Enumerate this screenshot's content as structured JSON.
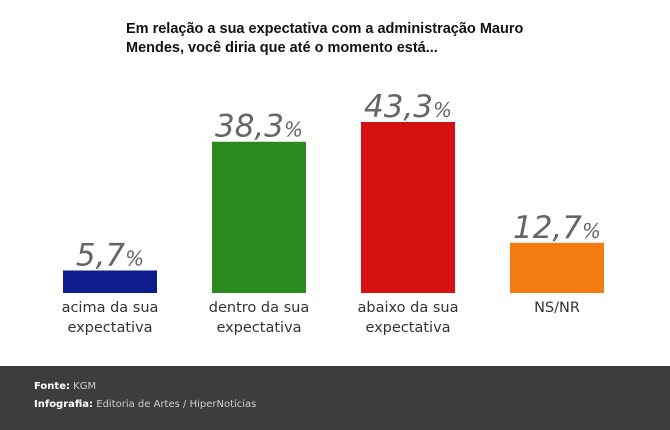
{
  "chart_data": {
    "type": "bar",
    "title": "Em relação a sua expectativa com a administração Mauro Mendes, você diria que até o momento está...",
    "categories": [
      "acima da sua expectativa",
      "dentro da sua expectativa",
      "abaixo da sua expectativa",
      "NS/NR"
    ],
    "label_lines": [
      [
        "acima da sua",
        "expectativa"
      ],
      [
        "dentro da sua",
        "expectativa"
      ],
      [
        "abaixo da sua",
        "expectativa"
      ],
      [
        "NS/NR"
      ]
    ],
    "values": [
      5.7,
      38.3,
      43.3,
      12.7
    ],
    "value_labels": [
      "5,7",
      "38,3",
      "43,3",
      "12,7"
    ],
    "unit": "%",
    "colors": [
      "#0f1e8c",
      "#2b8a1e",
      "#d61111",
      "#f47a12"
    ],
    "xlabel": "",
    "ylabel": "",
    "ylim": [
      0,
      43.3
    ],
    "grid": false,
    "legend": "none"
  },
  "footer": {
    "source_label": "Fonte:",
    "source_value": "KGM",
    "infographic_label": "Infografia:",
    "infographic_value": "Editoria de Artes / HiperNotícias"
  }
}
